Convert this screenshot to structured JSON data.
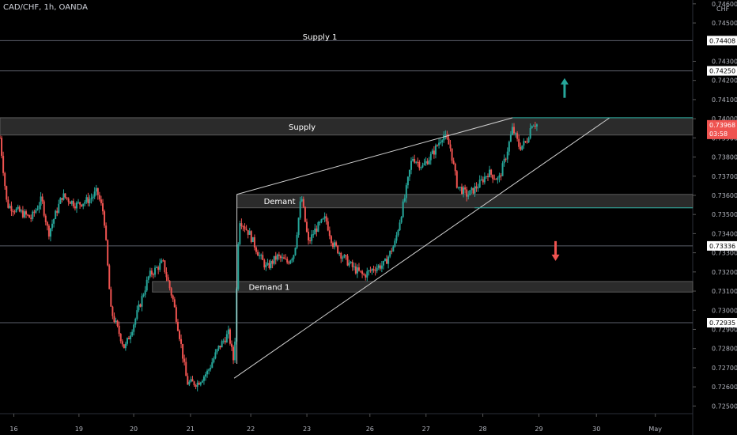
{
  "header": {
    "symbol": "CAD/CHF, 1h, OANDA"
  },
  "colors": {
    "background": "#000000",
    "up": "#26a69a",
    "down": "#ef5350",
    "zone_fill": "#3a3a3a",
    "line": "#cfcfcf",
    "hline": "#5d606b",
    "teal_line": "#26a69a",
    "label_bg": "#ffffff",
    "price_tag": "#ef5350"
  },
  "chart_data": {
    "type": "candlestick",
    "currency": "CHF",
    "ylim": [
      0.7246,
      0.7462
    ],
    "xlim": [
      0,
      1
    ],
    "x_ticks": [
      {
        "label": "16",
        "x": 0.02
      },
      {
        "label": "19",
        "x": 0.114
      },
      {
        "label": "20",
        "x": 0.193
      },
      {
        "label": "21",
        "x": 0.275
      },
      {
        "label": "22",
        "x": 0.362
      },
      {
        "label": "23",
        "x": 0.443
      },
      {
        "label": "26",
        "x": 0.534
      },
      {
        "label": "27",
        "x": 0.615
      },
      {
        "label": "28",
        "x": 0.697
      },
      {
        "label": "29",
        "x": 0.778
      },
      {
        "label": "30",
        "x": 0.861
      },
      {
        "label": "May",
        "x": 0.946
      }
    ],
    "y_ticks": [
      "0.74600",
      "0.74500",
      "0.74300",
      "0.74200",
      "0.74100",
      "0.74000",
      "0.73900",
      "0.73800",
      "0.73700",
      "0.73600",
      "0.73500",
      "0.73400",
      "0.73300",
      "0.73200",
      "0.73100",
      "0.73000",
      "0.72900",
      "0.72800",
      "0.72700",
      "0.72600",
      "0.72500"
    ],
    "horizontal_lines": [
      {
        "price": 0.74408,
        "label": "0.74408"
      },
      {
        "price": 0.7425,
        "label": "0.74250"
      },
      {
        "price": 0.73336,
        "label": "0.73336"
      },
      {
        "price": 0.72935,
        "label": "0.72935"
      }
    ],
    "current_price": {
      "value": "0.73968",
      "countdown": "03:58",
      "price": 0.73968
    },
    "zones": [
      {
        "label": "Supply",
        "top": 0.74005,
        "bottom": 0.73915,
        "x_start": 0.0,
        "x_end": 1.0
      },
      {
        "label": "Demant",
        "top": 0.73605,
        "bottom": 0.73535,
        "x_start": 0.342,
        "x_end": 1.0
      },
      {
        "label": "Demand 1",
        "top": 0.7315,
        "bottom": 0.73095,
        "x_start": 0.22,
        "x_end": 1.0
      }
    ],
    "text_labels": [
      {
        "label": "Supply 1",
        "x": 0.437,
        "price": 0.7443
      }
    ],
    "teal_lines": [
      {
        "x1": 0.74,
        "x2": 1.0,
        "price": 0.74005
      },
      {
        "x1": 0.685,
        "x2": 1.0,
        "price": 0.73535
      }
    ],
    "wedge_lines": [
      {
        "x1": 0.342,
        "y1": 0.73605,
        "x2": 0.74,
        "y2": 0.74005
      },
      {
        "x1": 0.338,
        "y1": 0.72645,
        "x2": 0.88,
        "y2": 0.74005
      },
      {
        "x1": 0.342,
        "y1": 0.73605,
        "x2": 0.342,
        "y2": 0.7272
      }
    ],
    "arrows": [
      {
        "direction": "up",
        "x": 0.815,
        "price": 0.742
      },
      {
        "direction": "down",
        "x": 0.802,
        "price": 0.7327
      }
    ],
    "close_path": [
      [
        0.0,
        0.739
      ],
      [
        0.01,
        0.7355
      ],
      [
        0.025,
        0.7352
      ],
      [
        0.045,
        0.7348
      ],
      [
        0.06,
        0.7358
      ],
      [
        0.07,
        0.734
      ],
      [
        0.09,
        0.736
      ],
      [
        0.11,
        0.7355
      ],
      [
        0.13,
        0.7358
      ],
      [
        0.14,
        0.7362
      ],
      [
        0.15,
        0.735
      ],
      [
        0.16,
        0.73
      ],
      [
        0.18,
        0.728
      ],
      [
        0.195,
        0.7295
      ],
      [
        0.215,
        0.7318
      ],
      [
        0.235,
        0.7325
      ],
      [
        0.25,
        0.7305
      ],
      [
        0.26,
        0.7285
      ],
      [
        0.27,
        0.7262
      ],
      [
        0.285,
        0.7262
      ],
      [
        0.3,
        0.7268
      ],
      [
        0.315,
        0.728
      ],
      [
        0.33,
        0.7288
      ],
      [
        0.338,
        0.7272
      ],
      [
        0.345,
        0.7348
      ],
      [
        0.36,
        0.734
      ],
      [
        0.375,
        0.7328
      ],
      [
        0.385,
        0.7322
      ],
      [
        0.4,
        0.7328
      ],
      [
        0.415,
        0.7325
      ],
      [
        0.425,
        0.733
      ],
      [
        0.435,
        0.736
      ],
      [
        0.445,
        0.7335
      ],
      [
        0.455,
        0.7342
      ],
      [
        0.47,
        0.7348
      ],
      [
        0.48,
        0.7335
      ],
      [
        0.495,
        0.7328
      ],
      [
        0.51,
        0.7322
      ],
      [
        0.525,
        0.7318
      ],
      [
        0.54,
        0.7322
      ],
      [
        0.555,
        0.7324
      ],
      [
        0.57,
        0.7335
      ],
      [
        0.585,
        0.736
      ],
      [
        0.595,
        0.738
      ],
      [
        0.61,
        0.7375
      ],
      [
        0.625,
        0.7382
      ],
      [
        0.64,
        0.7392
      ],
      [
        0.65,
        0.7385
      ],
      [
        0.66,
        0.7365
      ],
      [
        0.675,
        0.736
      ],
      [
        0.69,
        0.7365
      ],
      [
        0.705,
        0.7372
      ],
      [
        0.72,
        0.7368
      ],
      [
        0.73,
        0.738
      ],
      [
        0.74,
        0.7395
      ],
      [
        0.75,
        0.7385
      ],
      [
        0.76,
        0.7388
      ],
      [
        0.768,
        0.7398
      ],
      [
        0.775,
        0.7397
      ]
    ]
  }
}
